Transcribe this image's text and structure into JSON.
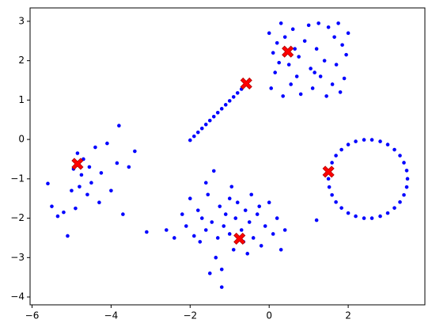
{
  "chart_data": {
    "type": "scatter",
    "xlim": [
      -6.05,
      3.94
    ],
    "ylim": [
      -4.2,
      3.34
    ],
    "xticks": [
      {
        "value": -6,
        "label": "−6"
      },
      {
        "value": -4,
        "label": "−4"
      },
      {
        "value": -2,
        "label": "−2"
      },
      0,
      2
    ],
    "yticks": [
      {
        "value": -4,
        "label": "−4"
      },
      {
        "value": -3,
        "label": "−3"
      },
      {
        "value": -2,
        "label": "−2"
      },
      {
        "value": -1,
        "label": "−1"
      },
      0,
      1,
      2,
      3
    ],
    "series": [
      {
        "color": "#0000ff",
        "marker": "dot",
        "x": [
          -5.6,
          -5.5,
          -5.35,
          -5.2,
          -5.1,
          -5.0,
          -4.95,
          -4.9,
          -4.85,
          -4.8,
          -4.75,
          -4.7,
          -4.6,
          -4.55,
          -4.5,
          -4.4,
          -4.3,
          -4.25,
          -4.1,
          -4.0,
          -3.85,
          -3.8,
          -3.7,
          -3.55,
          -3.4
        ],
        "y": [
          -1.12,
          -1.7,
          -1.95,
          -1.85,
          -2.45,
          -1.3,
          -0.75,
          -1.75,
          -0.35,
          -1.2,
          -0.9,
          -0.5,
          -1.4,
          -0.7,
          -1.1,
          -0.2,
          -1.6,
          -0.85,
          -0.1,
          -1.3,
          -0.6,
          0.35,
          -1.9,
          -0.7,
          -0.3
        ]
      },
      {
        "color": "#0000ff",
        "marker": "dot",
        "x": [
          -3.1,
          -2.6,
          -2.4,
          -2.2,
          -2.1,
          -2.0,
          -1.9,
          -1.8,
          -1.75,
          -1.7,
          -1.6,
          -1.55,
          -1.5,
          -1.45,
          -1.4,
          -1.3,
          -1.25,
          -1.2,
          -1.15,
          -1.1,
          -1.0,
          -0.95,
          -0.9,
          -0.85,
          -0.8,
          -0.7,
          -0.65,
          -0.6,
          -0.5,
          -0.45,
          -0.4,
          -0.3,
          -0.2,
          -0.1,
          0,
          0.1,
          0.2,
          0.3,
          0.4,
          -1.6,
          -1.35,
          -1.0,
          -0.55,
          -0.25,
          1.2,
          -1.2
        ],
        "y": [
          -2.35,
          -2.3,
          -2.5,
          -1.9,
          -2.2,
          -1.5,
          -2.45,
          -1.8,
          -2.6,
          -2.0,
          -2.3,
          -1.4,
          -3.4,
          -2.1,
          -0.8,
          -2.5,
          -1.7,
          -3.3,
          -2.2,
          -1.9,
          -2.4,
          -1.2,
          -2.8,
          -2.0,
          -1.6,
          -2.3,
          -2.6,
          -1.8,
          -2.1,
          -1.4,
          -2.5,
          -1.9,
          -2.7,
          -2.2,
          -1.6,
          -2.4,
          -2.0,
          -2.8,
          -2.3,
          -1.1,
          -3.0,
          -1.5,
          -2.9,
          -1.7,
          -2.05,
          -3.75
        ]
      },
      {
        "color": "#0000ff",
        "marker": "dot",
        "x": [
          0,
          0.05,
          0.1,
          0.15,
          0.2,
          0.3,
          0.35,
          0.4,
          0.5,
          0.55,
          0.6,
          0.7,
          0.75,
          0.8,
          0.9,
          1.0,
          1.05,
          1.1,
          1.2,
          1.25,
          1.3,
          1.4,
          1.45,
          1.5,
          1.6,
          1.65,
          1.7,
          1.8,
          1.85,
          1.9,
          1.95,
          2.0,
          0.25,
          0.65,
          1.15,
          1.75
        ],
        "y": [
          2.7,
          1.3,
          2.2,
          1.7,
          2.45,
          2.95,
          1.1,
          2.6,
          1.9,
          1.4,
          2.8,
          1.6,
          2.1,
          1.15,
          2.5,
          2.9,
          1.8,
          1.3,
          2.3,
          2.95,
          1.6,
          2.0,
          1.1,
          2.85,
          1.4,
          2.6,
          1.9,
          1.2,
          2.4,
          1.55,
          2.15,
          2.7,
          1.95,
          2.3,
          1.7,
          2.95
        ]
      },
      {
        "color": "#0000ff",
        "marker": "dot",
        "x": [
          -2.0,
          -1.9,
          -1.8,
          -1.7,
          -1.6,
          -1.5,
          -1.4,
          -1.3,
          -1.2,
          -1.1,
          -1.0,
          -0.9,
          -0.8,
          -0.7
        ],
        "y": [
          -0.02,
          0.08,
          0.18,
          0.28,
          0.38,
          0.48,
          0.58,
          0.68,
          0.78,
          0.88,
          0.98,
          1.08,
          1.18,
          1.28
        ]
      },
      {
        "color": "#0000ff",
        "marker": "dot",
        "x": [
          3.5,
          3.48,
          3.41,
          3.31,
          3.17,
          3.0,
          2.81,
          2.6,
          2.4,
          2.19,
          2.0,
          1.83,
          1.69,
          1.59,
          1.52,
          1.5,
          1.52,
          1.59,
          1.69,
          1.83,
          2.0,
          2.19,
          2.4,
          2.6,
          2.81,
          3.0,
          3.17,
          3.31,
          3.41,
          3.48
        ],
        "y": [
          -1,
          -0.79,
          -0.59,
          -0.41,
          -0.26,
          -0.13,
          -0.05,
          -0.01,
          -0.01,
          -0.05,
          -0.13,
          -0.26,
          -0.41,
          -0.59,
          -0.79,
          -1,
          -1.21,
          -1.41,
          -1.59,
          -1.74,
          -1.87,
          -1.95,
          -2.0,
          -2.0,
          -1.95,
          -1.87,
          -1.74,
          -1.59,
          -1.41,
          -1.21
        ]
      },
      {
        "color": "#ff0000",
        "marker": "X",
        "x": [
          -4.85,
          -0.75,
          0.47,
          -0.58,
          1.5
        ],
        "y": [
          -0.62,
          -2.52,
          2.23,
          1.42,
          -0.82
        ]
      }
    ]
  }
}
